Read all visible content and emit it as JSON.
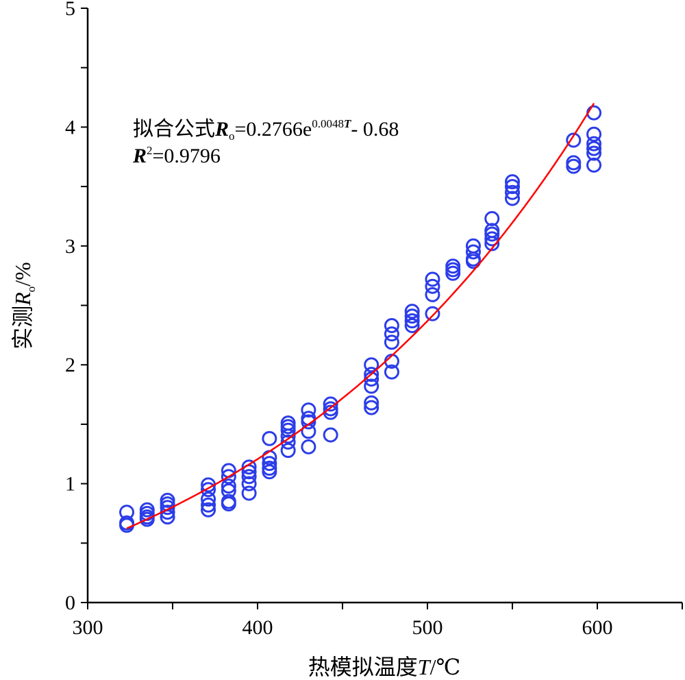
{
  "chart_data": {
    "type": "scatter",
    "xlim": [
      300,
      650
    ],
    "ylim": [
      0,
      5
    ],
    "x_ticks": [
      300,
      400,
      500,
      600
    ],
    "y_ticks": [
      0,
      1,
      2,
      3,
      4,
      5
    ],
    "xlabel": {
      "prefix": "热模拟温度",
      "var": "T",
      "suffix": "/℃"
    },
    "ylabel": {
      "prefix": "实测",
      "var": "R",
      "sub": "o",
      "suffix": "/%"
    },
    "annotation": {
      "line1_prefix": "拟合公式",
      "line1_var": "R",
      "line1_sub": "o",
      "line1_eq": "=0.2766e",
      "line1_exp": "0.0048",
      "line1_exp_var": "T",
      "line1_tail": "- 0.68",
      "line2_var": "R",
      "line2_sup": "2",
      "line2_val": "=0.9796"
    },
    "fit": {
      "a": 0.2766,
      "b": 0.0048,
      "c": -0.68,
      "x_range": [
        323,
        598
      ],
      "color": "#ff0000"
    },
    "marker_color": "#2b3de8",
    "points": [
      [
        323,
        0.76
      ],
      [
        323,
        0.67
      ],
      [
        323,
        0.65
      ],
      [
        335,
        0.78
      ],
      [
        335,
        0.75
      ],
      [
        335,
        0.72
      ],
      [
        335,
        0.7
      ],
      [
        347,
        0.86
      ],
      [
        347,
        0.83
      ],
      [
        347,
        0.8
      ],
      [
        347,
        0.76
      ],
      [
        347,
        0.72
      ],
      [
        371,
        0.99
      ],
      [
        371,
        0.95
      ],
      [
        371,
        0.87
      ],
      [
        371,
        0.82
      ],
      [
        371,
        0.78
      ],
      [
        383,
        1.11
      ],
      [
        383,
        1.06
      ],
      [
        383,
        0.98
      ],
      [
        383,
        0.94
      ],
      [
        383,
        0.85
      ],
      [
        383,
        0.83
      ],
      [
        395,
        1.14
      ],
      [
        395,
        1.1
      ],
      [
        395,
        1.06
      ],
      [
        395,
        1.0
      ],
      [
        395,
        0.92
      ],
      [
        407,
        1.38
      ],
      [
        407,
        1.22
      ],
      [
        407,
        1.17
      ],
      [
        407,
        1.13
      ],
      [
        407,
        1.1
      ],
      [
        418,
        1.51
      ],
      [
        418,
        1.48
      ],
      [
        418,
        1.45
      ],
      [
        418,
        1.4
      ],
      [
        418,
        1.35
      ],
      [
        418,
        1.28
      ],
      [
        430,
        1.62
      ],
      [
        430,
        1.55
      ],
      [
        430,
        1.52
      ],
      [
        430,
        1.44
      ],
      [
        430,
        1.31
      ],
      [
        443,
        1.67
      ],
      [
        443,
        1.63
      ],
      [
        443,
        1.6
      ],
      [
        443,
        1.41
      ],
      [
        467,
        2.0
      ],
      [
        467,
        1.92
      ],
      [
        467,
        1.88
      ],
      [
        467,
        1.82
      ],
      [
        467,
        1.68
      ],
      [
        467,
        1.64
      ],
      [
        479,
        2.33
      ],
      [
        479,
        2.26
      ],
      [
        479,
        2.19
      ],
      [
        479,
        2.03
      ],
      [
        479,
        1.94
      ],
      [
        491,
        2.45
      ],
      [
        491,
        2.41
      ],
      [
        491,
        2.37
      ],
      [
        491,
        2.33
      ],
      [
        503,
        2.72
      ],
      [
        503,
        2.66
      ],
      [
        503,
        2.59
      ],
      [
        503,
        2.43
      ],
      [
        515,
        2.83
      ],
      [
        515,
        2.8
      ],
      [
        515,
        2.77
      ],
      [
        527,
        3.0
      ],
      [
        527,
        2.95
      ],
      [
        527,
        2.89
      ],
      [
        527,
        2.87
      ],
      [
        538,
        3.23
      ],
      [
        538,
        3.13
      ],
      [
        538,
        3.1
      ],
      [
        538,
        3.06
      ],
      [
        538,
        3.02
      ],
      [
        550,
        3.54
      ],
      [
        550,
        3.5
      ],
      [
        550,
        3.45
      ],
      [
        550,
        3.4
      ],
      [
        586,
        3.89
      ],
      [
        586,
        3.7
      ],
      [
        586,
        3.67
      ],
      [
        598,
        4.12
      ],
      [
        598,
        3.94
      ],
      [
        598,
        3.86
      ],
      [
        598,
        3.82
      ],
      [
        598,
        3.78
      ],
      [
        598,
        3.68
      ]
    ]
  }
}
